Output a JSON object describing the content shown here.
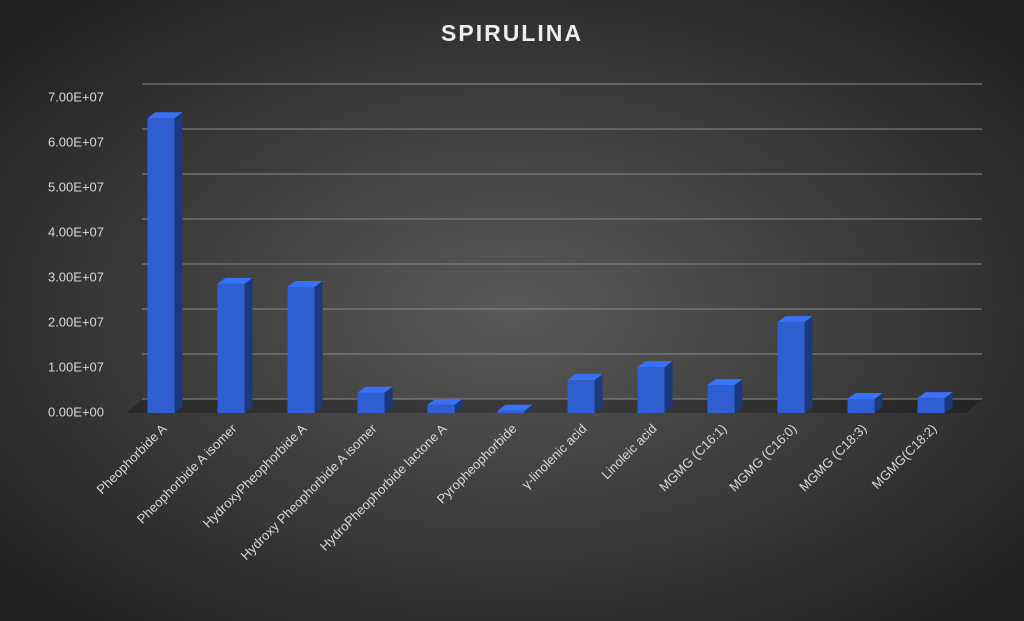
{
  "chart_data": {
    "type": "bar3d",
    "title": "SPIRULINA",
    "categories": [
      "Pheophorbide A",
      "Pheophorbide A isomer",
      "HydroxyPheophorbide A",
      "Hydroxy Pheophorbide A isomer",
      "HydroPheophorbide lactone A",
      "Pyropheophorbide",
      "γ-linolenic acid",
      "Linoleic acid",
      "MGMG (C16:1)",
      "MGMG (C16:0)",
      "MGMG (C18:3)",
      "MGMG(C18:2)"
    ],
    "values": [
      65500000,
      28700000,
      28000000,
      4500000,
      1800000,
      500000,
      7300000,
      10200000,
      6200000,
      20200000,
      3100000,
      3300000
    ],
    "color": "#2f5fd0",
    "ylim": [
      0,
      70000000
    ],
    "yticks": [
      {
        "value": 0,
        "label": "0.00E+00"
      },
      {
        "value": 10000000,
        "label": "1.00E+07"
      },
      {
        "value": 20000000,
        "label": "2.00E+07"
      },
      {
        "value": 30000000,
        "label": "3.00E+07"
      },
      {
        "value": 40000000,
        "label": "4.00E+07"
      },
      {
        "value": 50000000,
        "label": "5.00E+07"
      },
      {
        "value": 60000000,
        "label": "6.00E+07"
      },
      {
        "value": 70000000,
        "label": "7.00E+07"
      }
    ],
    "grid": true
  }
}
